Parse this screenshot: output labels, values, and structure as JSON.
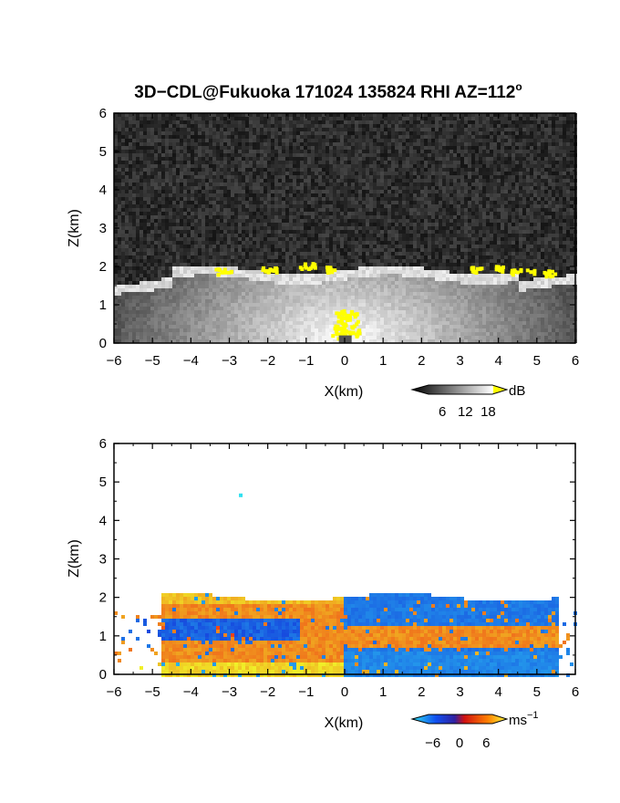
{
  "title": "3D−CDL@Fukuoka 171024 135824 RHI AZ=112",
  "title_sup": "o",
  "chart_data": [
    {
      "name": "snr",
      "type": "heatmap",
      "xlabel": "X(km)",
      "ylabel": "Z(km)",
      "xlim": [
        -6,
        6
      ],
      "ylim": [
        0,
        6
      ],
      "xticks": [
        "−6",
        "−5",
        "−4",
        "−3",
        "−2",
        "−1",
        "0",
        "1",
        "2",
        "3",
        "4",
        "5",
        "6"
      ],
      "yticks": [
        "0",
        "1",
        "2",
        "3",
        "4",
        "5",
        "6"
      ],
      "colorbar": {
        "unit": "dB",
        "ticks": [
          "6",
          "12",
          "18"
        ],
        "tick_values": [
          6,
          12,
          18
        ],
        "range": [
          0,
          21
        ]
      },
      "boundary_layer_top_km": 1.9,
      "saturated_color": "#ffff00"
    },
    {
      "name": "doppler",
      "type": "heatmap",
      "xlabel": "X(km)",
      "ylabel": "Z(km)",
      "xlim": [
        -6,
        6
      ],
      "ylim": [
        0,
        6
      ],
      "xticks": [
        "−6",
        "−5",
        "−4",
        "−3",
        "−2",
        "−1",
        "0",
        "1",
        "2",
        "3",
        "4",
        "5",
        "6"
      ],
      "yticks": [
        "0",
        "1",
        "2",
        "3",
        "4",
        "5",
        "6"
      ],
      "colorbar": {
        "unit": "ms",
        "unit_sup": "−1",
        "ticks": [
          "−6",
          "0",
          "6"
        ],
        "tick_values": [
          -6,
          0,
          6
        ],
        "range": [
          -9,
          9
        ]
      },
      "boundary_layer_top_km": 2.0
    }
  ],
  "colors": {
    "cloud_yellow": "#ffff00",
    "velocity_negative": "#1060f0",
    "velocity_positive": "#f03010",
    "velocity_high_positive": "#ffe000"
  }
}
